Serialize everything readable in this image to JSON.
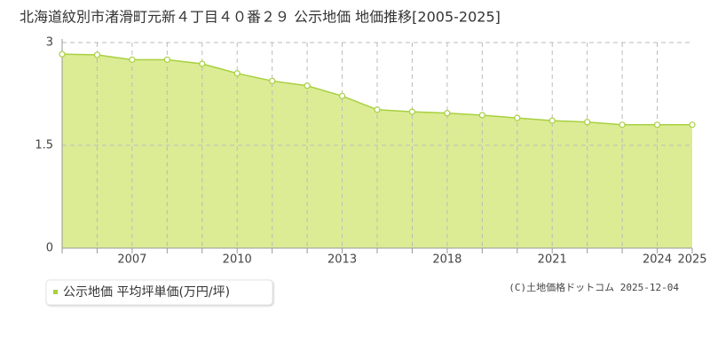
{
  "chart_data": {
    "type": "area",
    "title": "北海道紋別市渚滑町元新４丁目４０番２９ 公示地価 地価推移[2005-2025]",
    "categories": [
      null,
      null,
      "2007",
      null,
      null,
      "2010",
      null,
      null,
      "2013",
      null,
      null,
      "2018",
      null,
      null,
      "2021",
      null,
      null,
      "2024",
      "2025"
    ],
    "series": [
      {
        "name": "公示地価 平均坪単価(万円/坪)",
        "color": "#a8d040",
        "values": [
          2.83,
          2.82,
          2.75,
          2.75,
          2.69,
          2.55,
          2.44,
          2.37,
          2.22,
          2.02,
          1.99,
          1.97,
          1.94,
          1.9,
          1.86,
          1.84,
          1.8,
          1.8,
          1.8
        ]
      }
    ],
    "ylim": [
      0,
      3
    ],
    "yticks": [
      0,
      1.5,
      3
    ],
    "grid": true,
    "credit": "(C)土地価格ドットコム 2025-12-04"
  }
}
